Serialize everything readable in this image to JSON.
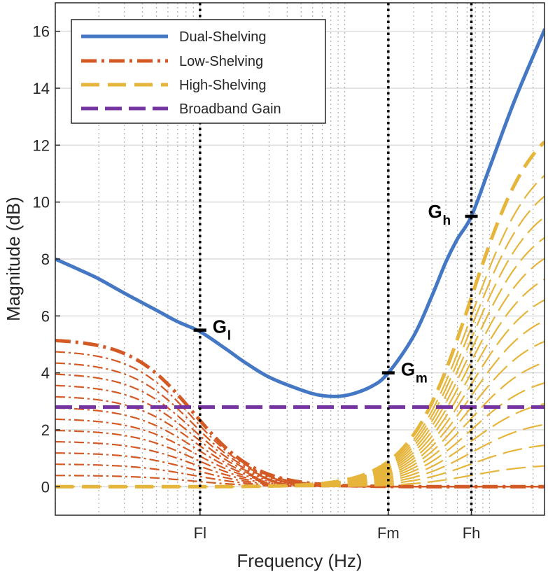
{
  "chart_data": {
    "type": "line",
    "xlabel": "Frequency (Hz)",
    "ylabel": "Magnitude (dB)",
    "xscale": "log",
    "xlim": [
      10,
      24000
    ],
    "ylim": [
      -1,
      17
    ],
    "yticks": [
      0,
      2,
      4,
      6,
      8,
      10,
      12,
      14,
      16
    ],
    "xticks": [
      {
        "label": "Fl",
        "freq": 100
      },
      {
        "label": "Fm",
        "freq": 2000
      },
      {
        "label": "Fh",
        "freq": 7500
      }
    ],
    "grid": true,
    "legend": {
      "position": "top-left",
      "entries": [
        {
          "name": "Dual-Shelving",
          "color": "#4477c4",
          "style": "solid"
        },
        {
          "name": "Low-Shelving",
          "color": "#d35a25",
          "style": "dashdot"
        },
        {
          "name": "High-Shelving",
          "color": "#e5b53c",
          "style": "dashed"
        },
        {
          "name": "Broadband Gain",
          "color": "#7433a1",
          "style": "dashed"
        }
      ]
    },
    "series": [
      {
        "name": "Dual-Shelving",
        "freq": [
          10,
          15,
          20,
          30,
          50,
          70,
          100,
          150,
          200,
          300,
          500,
          700,
          1000,
          1500,
          2000,
          3000,
          4000,
          5000,
          6000,
          7500,
          10000,
          15000,
          24000
        ],
        "values": [
          8.0,
          7.6,
          7.3,
          6.8,
          6.2,
          5.8,
          5.45,
          4.85,
          4.4,
          3.85,
          3.4,
          3.2,
          3.2,
          3.5,
          4.0,
          5.3,
          6.7,
          7.9,
          8.7,
          9.5,
          11.2,
          13.6,
          16.05
        ]
      },
      {
        "name": "Broadband Gain",
        "freq": [
          10,
          24000
        ],
        "values": [
          2.8,
          2.8
        ]
      }
    ],
    "low_shelf_family": {
      "fc": 90,
      "max_gain": 5.2,
      "gains": [
        0.4,
        0.8,
        1.2,
        1.6,
        2.0,
        2.4,
        2.8,
        3.2,
        3.6,
        4.0,
        4.4,
        4.8,
        5.2
      ],
      "highlight_gain": 5.2
    },
    "high_shelf_family": {
      "fc": 7500,
      "max_gain": 13.3,
      "gains": [
        0.8,
        1.6,
        2.4,
        3.2,
        4.0,
        4.8,
        5.6,
        6.4,
        7.2,
        8.0,
        8.8,
        9.6,
        10.4,
        11.2,
        12.0,
        13.3
      ],
      "highlight_gain": 13.3
    },
    "annotations": [
      {
        "label": "G",
        "sub": "l",
        "freq": 100,
        "value": 5.5
      },
      {
        "label": "G",
        "sub": "m",
        "freq": 2000,
        "value": 4.0
      },
      {
        "label": "G",
        "sub": "h",
        "freq": 7500,
        "value": 9.5
      }
    ]
  }
}
